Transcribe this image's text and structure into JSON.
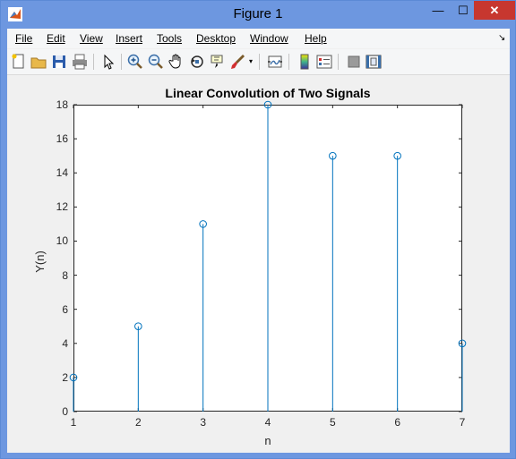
{
  "window": {
    "title": "Figure 1",
    "minimize_glyph": "—",
    "maximize_glyph": "☐",
    "close_glyph": "✕"
  },
  "menu": [
    "File",
    "Edit",
    "View",
    "Insert",
    "Tools",
    "Desktop",
    "Window",
    "Help"
  ],
  "toolbar_icons": [
    "new-figure-icon",
    "open-file-icon",
    "save-icon",
    "print-icon",
    "edit-plot-icon",
    "zoom-in-icon",
    "zoom-out-icon",
    "pan-icon",
    "rotate-3d-icon",
    "data-cursor-icon",
    "brush-icon",
    "brush-dropdown-icon",
    "link-plot-icon",
    "insert-colorbar-icon",
    "insert-legend-icon",
    "hide-plot-tools-icon",
    "show-plot-tools-icon"
  ],
  "chart_data": {
    "type": "stem",
    "title": "Linear Convolution of Two Signals",
    "xlabel": "n",
    "ylabel": "Y(n)",
    "x": [
      1,
      2,
      3,
      4,
      5,
      6,
      7
    ],
    "y": [
      2,
      5,
      11,
      18,
      15,
      15,
      4
    ],
    "xlim": [
      1,
      7
    ],
    "ylim": [
      0,
      18
    ],
    "xticks": [
      "1",
      "2",
      "3",
      "4",
      "5",
      "6",
      "7"
    ],
    "yticks": [
      "0",
      "2",
      "4",
      "6",
      "8",
      "10",
      "12",
      "14",
      "16",
      "18"
    ],
    "color": "#0072bd",
    "grid": false
  }
}
